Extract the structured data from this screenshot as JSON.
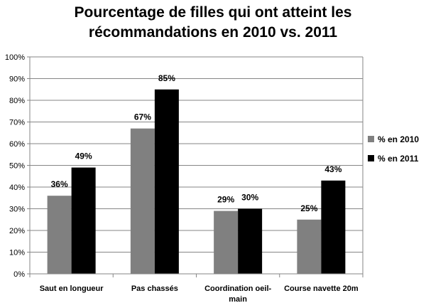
{
  "chart_data": {
    "type": "bar",
    "title_lines": [
      "Pourcentage de filles qui ont atteint les",
      "récommandations en 2010 vs. 2011"
    ],
    "categories": [
      [
        "Saut en longueur"
      ],
      [
        "Pas chassés"
      ],
      [
        "Coordination oeil-",
        "main"
      ],
      [
        "Course navette 20m"
      ]
    ],
    "series": [
      {
        "name": "% en 2010",
        "color": "#808080",
        "values": [
          36,
          67,
          29,
          25
        ],
        "labels": [
          "36%",
          "67%",
          "29%",
          "25%"
        ]
      },
      {
        "name": "% en 2011",
        "color": "#000000",
        "values": [
          49,
          85,
          30,
          43
        ],
        "labels": [
          "49%",
          "85%",
          "30%",
          "43%"
        ]
      }
    ],
    "yticks": [
      "0%",
      "10%",
      "20%",
      "30%",
      "40%",
      "50%",
      "60%",
      "70%",
      "80%",
      "90%",
      "100%"
    ],
    "ylim": [
      0,
      100
    ],
    "grid": true,
    "legend_position": "right"
  }
}
